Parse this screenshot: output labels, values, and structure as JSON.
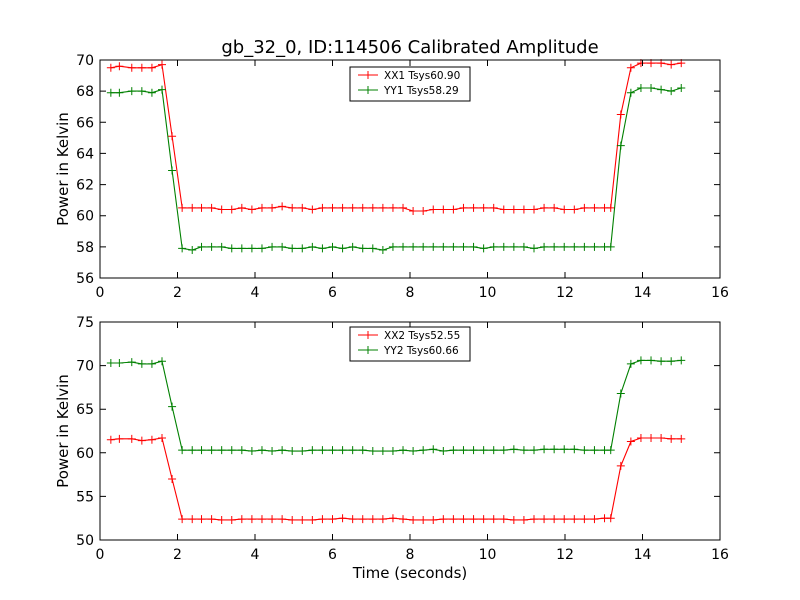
{
  "figure": {
    "title": "gb_32_0, ID:114506 Calibrated Amplitude",
    "xlabel": "Time (seconds)"
  },
  "chart_data": [
    {
      "type": "line",
      "title": "gb_32_0, ID:114506 Calibrated Amplitude",
      "xlabel": "",
      "ylabel": "Power in Kelvin",
      "xlim": [
        0,
        16
      ],
      "ylim": [
        56,
        70
      ],
      "xticks": [
        0,
        2,
        4,
        6,
        8,
        10,
        12,
        14,
        16
      ],
      "yticks": [
        56,
        58,
        60,
        62,
        64,
        66,
        68,
        70
      ],
      "grid": false,
      "legend_position": "top-center",
      "series": [
        {
          "name": "XX1 Tsys60.90",
          "color": "#ff0000",
          "x": [
            0.28,
            0.5,
            0.82,
            1.08,
            1.34,
            1.6,
            1.86,
            2.12,
            2.38,
            2.62,
            2.88,
            3.14,
            3.4,
            3.66,
            3.92,
            4.18,
            4.44,
            4.7,
            4.96,
            5.22,
            5.48,
            5.74,
            6.0,
            6.26,
            6.52,
            6.78,
            7.04,
            7.3,
            7.56,
            7.82,
            8.08,
            8.34,
            8.6,
            8.86,
            9.12,
            9.38,
            9.64,
            9.9,
            10.16,
            10.42,
            10.68,
            10.94,
            11.2,
            11.46,
            11.72,
            11.98,
            12.24,
            12.5,
            12.76,
            13.02,
            13.18,
            13.44,
            13.7,
            13.96,
            14.22,
            14.48,
            14.74,
            15.0
          ],
          "values": [
            69.5,
            69.6,
            69.5,
            69.5,
            69.5,
            69.7,
            65.1,
            60.5,
            60.5,
            60.5,
            60.5,
            60.4,
            60.4,
            60.5,
            60.4,
            60.5,
            60.5,
            60.6,
            60.5,
            60.5,
            60.4,
            60.5,
            60.5,
            60.5,
            60.5,
            60.5,
            60.5,
            60.5,
            60.5,
            60.5,
            60.3,
            60.3,
            60.4,
            60.4,
            60.4,
            60.5,
            60.5,
            60.5,
            60.5,
            60.4,
            60.4,
            60.4,
            60.4,
            60.5,
            60.5,
            60.4,
            60.4,
            60.5,
            60.5,
            60.5,
            60.5,
            66.5,
            69.5,
            69.8,
            69.8,
            69.8,
            69.7,
            69.8
          ]
        },
        {
          "name": "YY1 Tsys58.29",
          "color": "#008000",
          "x": [
            0.28,
            0.5,
            0.82,
            1.08,
            1.34,
            1.6,
            1.86,
            2.12,
            2.38,
            2.62,
            2.88,
            3.14,
            3.4,
            3.66,
            3.92,
            4.18,
            4.44,
            4.7,
            4.96,
            5.22,
            5.48,
            5.74,
            6.0,
            6.26,
            6.52,
            6.78,
            7.04,
            7.3,
            7.56,
            7.82,
            8.08,
            8.34,
            8.6,
            8.86,
            9.12,
            9.38,
            9.64,
            9.9,
            10.16,
            10.42,
            10.68,
            10.94,
            11.2,
            11.46,
            11.72,
            11.98,
            12.24,
            12.5,
            12.76,
            13.02,
            13.18,
            13.44,
            13.7,
            13.96,
            14.22,
            14.48,
            14.74,
            15.0
          ],
          "values": [
            67.9,
            67.9,
            68.0,
            68.0,
            67.9,
            68.1,
            62.9,
            57.9,
            57.8,
            58.0,
            58.0,
            58.0,
            57.9,
            57.9,
            57.9,
            57.9,
            58.0,
            58.0,
            57.9,
            57.9,
            58.0,
            57.9,
            58.0,
            57.9,
            58.0,
            57.9,
            57.9,
            57.8,
            58.0,
            58.0,
            58.0,
            58.0,
            58.0,
            58.0,
            58.0,
            58.0,
            58.0,
            57.9,
            58.0,
            58.0,
            58.0,
            58.0,
            57.9,
            58.0,
            58.0,
            58.0,
            58.0,
            58.0,
            58.0,
            58.0,
            58.0,
            64.5,
            67.9,
            68.2,
            68.2,
            68.1,
            68.0,
            68.2
          ]
        }
      ]
    },
    {
      "type": "line",
      "title": "",
      "xlabel": "Time (seconds)",
      "ylabel": "Power in Kelvin",
      "xlim": [
        0,
        16
      ],
      "ylim": [
        50,
        75
      ],
      "xticks": [
        0,
        2,
        4,
        6,
        8,
        10,
        12,
        14,
        16
      ],
      "yticks": [
        50,
        55,
        60,
        65,
        70,
        75
      ],
      "grid": false,
      "legend_position": "top-center",
      "series": [
        {
          "name": "XX2 Tsys52.55",
          "color": "#ff0000",
          "x": [
            0.28,
            0.5,
            0.82,
            1.08,
            1.34,
            1.6,
            1.86,
            2.12,
            2.38,
            2.62,
            2.88,
            3.14,
            3.4,
            3.66,
            3.92,
            4.18,
            4.44,
            4.7,
            4.96,
            5.22,
            5.48,
            5.74,
            6.0,
            6.26,
            6.52,
            6.78,
            7.04,
            7.3,
            7.56,
            7.82,
            8.08,
            8.34,
            8.6,
            8.86,
            9.12,
            9.38,
            9.64,
            9.9,
            10.16,
            10.42,
            10.68,
            10.94,
            11.2,
            11.46,
            11.72,
            11.98,
            12.24,
            12.5,
            12.76,
            13.02,
            13.18,
            13.44,
            13.7,
            13.96,
            14.22,
            14.48,
            14.74,
            15.0
          ],
          "values": [
            61.5,
            61.6,
            61.6,
            61.4,
            61.5,
            61.7,
            57.0,
            52.4,
            52.4,
            52.4,
            52.4,
            52.3,
            52.3,
            52.4,
            52.4,
            52.4,
            52.4,
            52.4,
            52.3,
            52.3,
            52.3,
            52.4,
            52.4,
            52.5,
            52.4,
            52.4,
            52.4,
            52.4,
            52.5,
            52.4,
            52.3,
            52.3,
            52.3,
            52.4,
            52.4,
            52.4,
            52.4,
            52.4,
            52.4,
            52.4,
            52.3,
            52.3,
            52.4,
            52.4,
            52.4,
            52.4,
            52.4,
            52.4,
            52.4,
            52.5,
            52.5,
            58.5,
            61.3,
            61.7,
            61.7,
            61.7,
            61.6,
            61.6
          ]
        },
        {
          "name": "YY2 Tsys60.66",
          "color": "#008000",
          "x": [
            0.28,
            0.5,
            0.82,
            1.08,
            1.34,
            1.6,
            1.86,
            2.12,
            2.38,
            2.62,
            2.88,
            3.14,
            3.4,
            3.66,
            3.92,
            4.18,
            4.44,
            4.7,
            4.96,
            5.22,
            5.48,
            5.74,
            6.0,
            6.26,
            6.52,
            6.78,
            7.04,
            7.3,
            7.56,
            7.82,
            8.08,
            8.34,
            8.6,
            8.86,
            9.12,
            9.38,
            9.64,
            9.9,
            10.16,
            10.42,
            10.68,
            10.94,
            11.2,
            11.46,
            11.72,
            11.98,
            12.24,
            12.5,
            12.76,
            13.02,
            13.18,
            13.44,
            13.7,
            13.96,
            14.22,
            14.48,
            14.74,
            15.0
          ],
          "values": [
            70.3,
            70.3,
            70.4,
            70.2,
            70.2,
            70.5,
            65.3,
            60.3,
            60.3,
            60.3,
            60.3,
            60.3,
            60.3,
            60.3,
            60.2,
            60.3,
            60.2,
            60.3,
            60.2,
            60.2,
            60.3,
            60.3,
            60.3,
            60.3,
            60.3,
            60.3,
            60.2,
            60.2,
            60.2,
            60.3,
            60.2,
            60.3,
            60.4,
            60.2,
            60.3,
            60.3,
            60.3,
            60.3,
            60.3,
            60.3,
            60.4,
            60.3,
            60.3,
            60.4,
            60.4,
            60.4,
            60.4,
            60.3,
            60.3,
            60.3,
            60.3,
            66.8,
            70.2,
            70.6,
            70.6,
            70.5,
            70.5,
            70.6
          ]
        }
      ]
    }
  ]
}
